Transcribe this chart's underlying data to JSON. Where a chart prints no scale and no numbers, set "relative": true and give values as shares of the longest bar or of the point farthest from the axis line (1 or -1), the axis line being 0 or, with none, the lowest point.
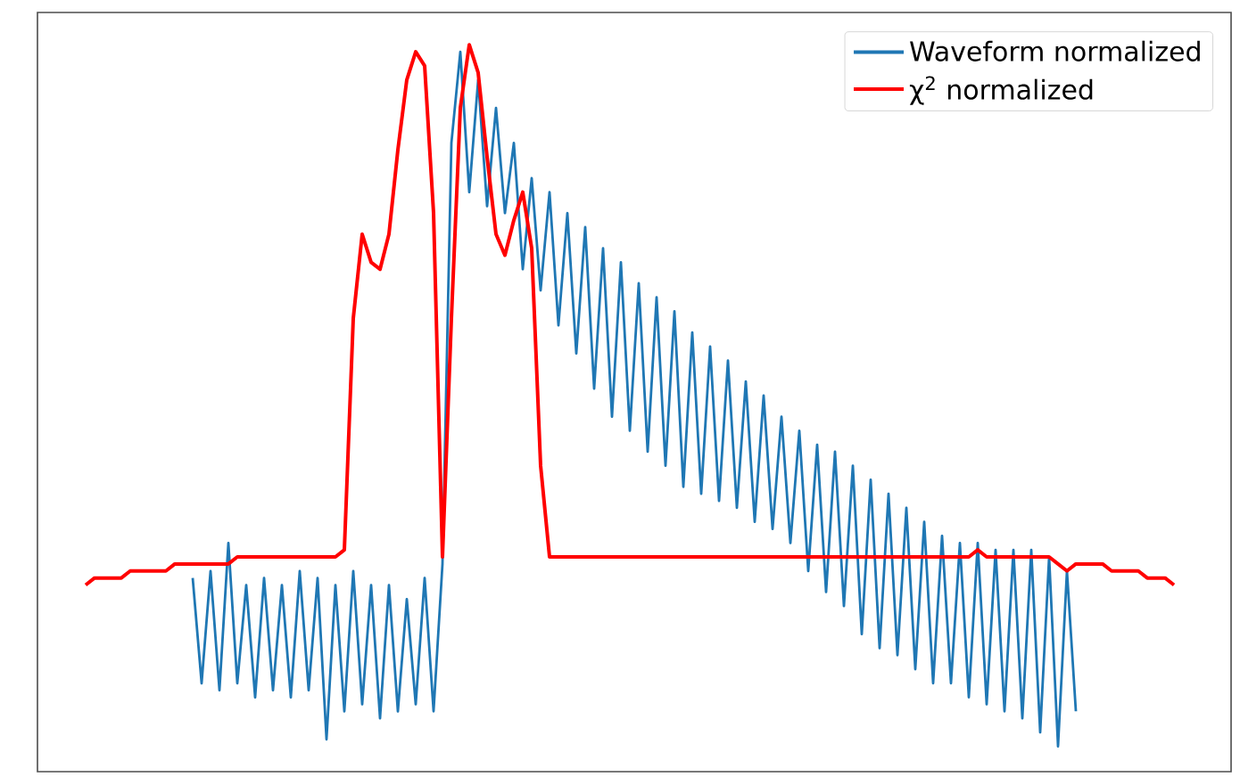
{
  "chart_data": {
    "type": "line",
    "relative": true,
    "legend": "top right",
    "categories": [
      null,
      null,
      null,
      null,
      null,
      null,
      null,
      null,
      null,
      null,
      null,
      null,
      null,
      null,
      null,
      null,
      null,
      null,
      null,
      null,
      null,
      null,
      null,
      null,
      null,
      null,
      null,
      null,
      null,
      null,
      null,
      null,
      null,
      null,
      null,
      null,
      null,
      null,
      null,
      null,
      null,
      null,
      null,
      null,
      null,
      null,
      null,
      null,
      null,
      null,
      null,
      null,
      null,
      null,
      null,
      null,
      null,
      null,
      null,
      null,
      null,
      null,
      null,
      null,
      null,
      null,
      null,
      null,
      null,
      null,
      null,
      null,
      null,
      null,
      null,
      null,
      null,
      null,
      null,
      null,
      null,
      null,
      null,
      null,
      null,
      null,
      null,
      null,
      null,
      null,
      null,
      null,
      null,
      null,
      null,
      null,
      null,
      null,
      null,
      null,
      null,
      null,
      null,
      null,
      null,
      null,
      null,
      null,
      null,
      null,
      null,
      null,
      null,
      null,
      null,
      null,
      null,
      null,
      null,
      null,
      null,
      null,
      null
    ],
    "series": [
      {
        "name": "Waveform normalized",
        "color": "#1f77b4",
        "values": [
          null,
          null,
          null,
          null,
          null,
          null,
          null,
          null,
          null,
          null,
          null,
          null,
          0.24,
          0.09,
          0.25,
          0.08,
          0.29,
          0.09,
          0.23,
          0.07,
          0.24,
          0.08,
          0.23,
          0.07,
          0.25,
          0.08,
          0.24,
          0.01,
          0.23,
          0.05,
          0.25,
          0.06,
          0.23,
          0.04,
          0.23,
          0.05,
          0.21,
          0.06,
          0.24,
          0.05,
          0.26,
          0.86,
          0.99,
          0.79,
          0.95,
          0.77,
          0.91,
          0.76,
          0.86,
          0.68,
          0.81,
          0.65,
          0.79,
          0.6,
          0.76,
          0.56,
          0.74,
          0.51,
          0.71,
          0.47,
          0.69,
          0.45,
          0.66,
          0.42,
          0.64,
          0.4,
          0.62,
          0.37,
          0.59,
          0.36,
          0.57,
          0.35,
          0.55,
          0.34,
          0.52,
          0.32,
          0.5,
          0.31,
          0.47,
          0.29,
          0.45,
          0.25,
          0.43,
          0.22,
          0.42,
          0.2,
          0.4,
          0.16,
          0.38,
          0.14,
          0.36,
          0.13,
          0.34,
          0.11,
          0.32,
          0.09,
          0.3,
          0.09,
          0.29,
          0.07,
          0.29,
          0.06,
          0.28,
          0.05,
          0.28,
          0.04,
          0.28,
          0.02,
          0.27,
          0,
          0.25,
          0.05,
          null,
          null,
          null,
          null,
          null,
          null,
          null,
          null,
          null,
          null,
          null
        ]
      },
      {
        "name": "χ$^{2}$ normalized",
        "color": "#ff0000",
        "values": [
          0.23,
          0.24,
          0.24,
          0.24,
          0.24,
          0.25,
          0.25,
          0.25,
          0.25,
          0.25,
          0.26,
          0.26,
          0.26,
          0.26,
          0.26,
          0.26,
          0.26,
          0.27,
          0.27,
          0.27,
          0.27,
          0.27,
          0.27,
          0.27,
          0.27,
          0.27,
          0.27,
          0.27,
          0.27,
          0.28,
          0.61,
          0.73,
          0.69,
          0.68,
          0.73,
          0.85,
          0.95,
          0.99,
          0.97,
          0.76,
          0.27,
          0.61,
          0.91,
          1,
          0.96,
          0.84,
          0.73,
          0.7,
          0.75,
          0.79,
          0.71,
          0.4,
          0.27,
          0.27,
          0.27,
          0.27,
          0.27,
          0.27,
          0.27,
          0.27,
          0.27,
          0.27,
          0.27,
          0.27,
          0.27,
          0.27,
          0.27,
          0.27,
          0.27,
          0.27,
          0.27,
          0.27,
          0.27,
          0.27,
          0.27,
          0.27,
          0.27,
          0.27,
          0.27,
          0.27,
          0.27,
          0.27,
          0.27,
          0.27,
          0.27,
          0.27,
          0.27,
          0.27,
          0.27,
          0.27,
          0.27,
          0.27,
          0.27,
          0.27,
          0.27,
          0.27,
          0.27,
          0.27,
          0.27,
          0.27,
          0.28,
          0.27,
          0.27,
          0.27,
          0.27,
          0.27,
          0.27,
          0.27,
          0.27,
          0.26,
          0.25,
          0.26,
          0.26,
          0.26,
          0.26,
          0.25,
          0.25,
          0.25,
          0.25,
          0.24,
          0.24,
          0.24,
          0.23
        ]
      }
    ]
  }
}
